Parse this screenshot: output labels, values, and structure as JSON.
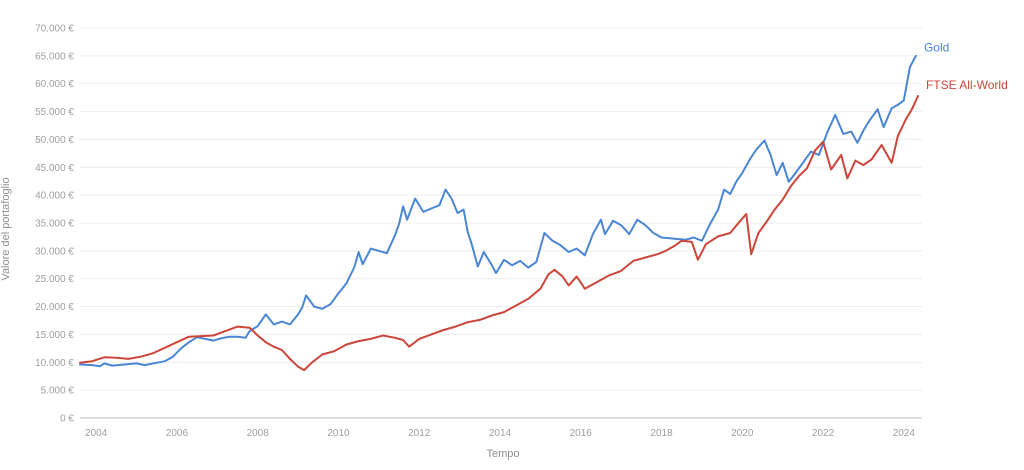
{
  "chart_data": {
    "type": "line",
    "xlabel": "Tempo",
    "ylabel": "Valore del portafoglio",
    "xlim": [
      2003.6,
      2024.45
    ],
    "ylim": [
      0,
      70000
    ],
    "x_ticks": [
      2004,
      2006,
      2008,
      2010,
      2012,
      2014,
      2016,
      2018,
      2020,
      2022,
      2024
    ],
    "x_tick_labels": [
      "2004",
      "2006",
      "2008",
      "2010",
      "2012",
      "2014",
      "2016",
      "2018",
      "2020",
      "2022",
      "2024"
    ],
    "y_ticks": [
      0,
      5000,
      10000,
      15000,
      20000,
      25000,
      30000,
      35000,
      40000,
      45000,
      50000,
      55000,
      60000,
      65000,
      70000
    ],
    "y_tick_labels": [
      "0 €",
      "5.000 €",
      "10.000 €",
      "15.000 €",
      "20.000 €",
      "25.000 €",
      "30.000 €",
      "35.000 €",
      "40.000 €",
      "45.000 €",
      "50.000 €",
      "55.000 €",
      "60.000 €",
      "65.000 €",
      "70.000 €"
    ],
    "grid": true,
    "legend": "end-of-line labels",
    "series": [
      {
        "name": "Gold",
        "color": "#4a86d4",
        "points": [
          [
            2003.6,
            9600
          ],
          [
            2003.9,
            9500
          ],
          [
            2004.1,
            9300
          ],
          [
            2004.2,
            9800
          ],
          [
            2004.4,
            9400
          ],
          [
            2004.7,
            9600
          ],
          [
            2005.0,
            9800
          ],
          [
            2005.2,
            9500
          ],
          [
            2005.5,
            9900
          ],
          [
            2005.7,
            10200
          ],
          [
            2005.9,
            11000
          ],
          [
            2006.1,
            12500
          ],
          [
            2006.3,
            13600
          ],
          [
            2006.5,
            14500
          ],
          [
            2006.7,
            14200
          ],
          [
            2006.9,
            13900
          ],
          [
            2007.1,
            14300
          ],
          [
            2007.3,
            14600
          ],
          [
            2007.5,
            14600
          ],
          [
            2007.7,
            14400
          ],
          [
            2007.8,
            15600
          ],
          [
            2008.0,
            16500
          ],
          [
            2008.2,
            18600
          ],
          [
            2008.4,
            16800
          ],
          [
            2008.6,
            17300
          ],
          [
            2008.8,
            16800
          ],
          [
            2009.0,
            18600
          ],
          [
            2009.1,
            19800
          ],
          [
            2009.2,
            22000
          ],
          [
            2009.4,
            20000
          ],
          [
            2009.6,
            19600
          ],
          [
            2009.8,
            20400
          ],
          [
            2010.0,
            22400
          ],
          [
            2010.2,
            24200
          ],
          [
            2010.4,
            27200
          ],
          [
            2010.5,
            29800
          ],
          [
            2010.6,
            27600
          ],
          [
            2010.8,
            30400
          ],
          [
            2011.0,
            30000
          ],
          [
            2011.2,
            29600
          ],
          [
            2011.4,
            32800
          ],
          [
            2011.5,
            34800
          ],
          [
            2011.6,
            38000
          ],
          [
            2011.7,
            35600
          ],
          [
            2011.9,
            39400
          ],
          [
            2012.1,
            37000
          ],
          [
            2012.3,
            37600
          ],
          [
            2012.5,
            38200
          ],
          [
            2012.65,
            41000
          ],
          [
            2012.8,
            39400
          ],
          [
            2012.95,
            36800
          ],
          [
            2013.1,
            37400
          ],
          [
            2013.2,
            33400
          ],
          [
            2013.3,
            31200
          ],
          [
            2013.45,
            27200
          ],
          [
            2013.6,
            29800
          ],
          [
            2013.8,
            27400
          ],
          [
            2013.9,
            26000
          ],
          [
            2014.1,
            28400
          ],
          [
            2014.3,
            27400
          ],
          [
            2014.5,
            28200
          ],
          [
            2014.7,
            27000
          ],
          [
            2014.9,
            28000
          ],
          [
            2015.0,
            30600
          ],
          [
            2015.1,
            33200
          ],
          [
            2015.3,
            31800
          ],
          [
            2015.5,
            31000
          ],
          [
            2015.7,
            29800
          ],
          [
            2015.9,
            30400
          ],
          [
            2016.1,
            29200
          ],
          [
            2016.3,
            33000
          ],
          [
            2016.5,
            35600
          ],
          [
            2016.6,
            33000
          ],
          [
            2016.8,
            35400
          ],
          [
            2017.0,
            34600
          ],
          [
            2017.2,
            33000
          ],
          [
            2017.4,
            35600
          ],
          [
            2017.6,
            34600
          ],
          [
            2017.8,
            33200
          ],
          [
            2018.0,
            32400
          ],
          [
            2018.3,
            32200
          ],
          [
            2018.6,
            32000
          ],
          [
            2018.8,
            32400
          ],
          [
            2019.0,
            31800
          ],
          [
            2019.2,
            34800
          ],
          [
            2019.4,
            37400
          ],
          [
            2019.55,
            41000
          ],
          [
            2019.7,
            40200
          ],
          [
            2019.85,
            42400
          ],
          [
            2020.0,
            44000
          ],
          [
            2020.2,
            46600
          ],
          [
            2020.35,
            48200
          ],
          [
            2020.55,
            49800
          ],
          [
            2020.7,
            47200
          ],
          [
            2020.85,
            43600
          ],
          [
            2021.0,
            45800
          ],
          [
            2021.15,
            42400
          ],
          [
            2021.3,
            43800
          ],
          [
            2021.5,
            45800
          ],
          [
            2021.7,
            47800
          ],
          [
            2021.9,
            47200
          ],
          [
            2022.1,
            51200
          ],
          [
            2022.3,
            54400
          ],
          [
            2022.5,
            51000
          ],
          [
            2022.7,
            51400
          ],
          [
            2022.85,
            49400
          ],
          [
            2023.0,
            51600
          ],
          [
            2023.15,
            53400
          ],
          [
            2023.35,
            55400
          ],
          [
            2023.5,
            52200
          ],
          [
            2023.7,
            55600
          ],
          [
            2023.85,
            56200
          ],
          [
            2024.0,
            57000
          ],
          [
            2024.15,
            63000
          ],
          [
            2024.3,
            65000
          ]
        ]
      },
      {
        "name": "FTSE All-World",
        "color": "#cc463b",
        "points": [
          [
            2003.6,
            9900
          ],
          [
            2003.9,
            10200
          ],
          [
            2004.2,
            10900
          ],
          [
            2004.5,
            10800
          ],
          [
            2004.8,
            10600
          ],
          [
            2005.1,
            11000
          ],
          [
            2005.4,
            11600
          ],
          [
            2005.7,
            12600
          ],
          [
            2006.0,
            13600
          ],
          [
            2006.3,
            14600
          ],
          [
            2006.6,
            14700
          ],
          [
            2006.9,
            14800
          ],
          [
            2007.2,
            15600
          ],
          [
            2007.5,
            16400
          ],
          [
            2007.8,
            16200
          ],
          [
            2008.0,
            14800
          ],
          [
            2008.2,
            13600
          ],
          [
            2008.4,
            12800
          ],
          [
            2008.6,
            12200
          ],
          [
            2008.8,
            10600
          ],
          [
            2009.0,
            9200
          ],
          [
            2009.15,
            8600
          ],
          [
            2009.35,
            10000
          ],
          [
            2009.6,
            11400
          ],
          [
            2009.9,
            12000
          ],
          [
            2010.2,
            13200
          ],
          [
            2010.5,
            13800
          ],
          [
            2010.8,
            14200
          ],
          [
            2011.1,
            14800
          ],
          [
            2011.4,
            14400
          ],
          [
            2011.6,
            14000
          ],
          [
            2011.75,
            12800
          ],
          [
            2012.0,
            14200
          ],
          [
            2012.3,
            15000
          ],
          [
            2012.6,
            15800
          ],
          [
            2012.9,
            16400
          ],
          [
            2013.2,
            17200
          ],
          [
            2013.5,
            17600
          ],
          [
            2013.8,
            18400
          ],
          [
            2014.1,
            19000
          ],
          [
            2014.4,
            20200
          ],
          [
            2014.7,
            21400
          ],
          [
            2015.0,
            23200
          ],
          [
            2015.2,
            25800
          ],
          [
            2015.35,
            26600
          ],
          [
            2015.55,
            25400
          ],
          [
            2015.7,
            23800
          ],
          [
            2015.9,
            25400
          ],
          [
            2016.1,
            23200
          ],
          [
            2016.4,
            24400
          ],
          [
            2016.7,
            25600
          ],
          [
            2017.0,
            26400
          ],
          [
            2017.3,
            28200
          ],
          [
            2017.6,
            28800
          ],
          [
            2017.9,
            29400
          ],
          [
            2018.1,
            30000
          ],
          [
            2018.3,
            30800
          ],
          [
            2018.5,
            31800
          ],
          [
            2018.75,
            31600
          ],
          [
            2018.9,
            28400
          ],
          [
            2019.1,
            31200
          ],
          [
            2019.4,
            32600
          ],
          [
            2019.7,
            33200
          ],
          [
            2019.95,
            35400
          ],
          [
            2020.1,
            36600
          ],
          [
            2020.22,
            29400
          ],
          [
            2020.4,
            33200
          ],
          [
            2020.6,
            35200
          ],
          [
            2020.8,
            37400
          ],
          [
            2021.0,
            39200
          ],
          [
            2021.2,
            41600
          ],
          [
            2021.4,
            43400
          ],
          [
            2021.6,
            44800
          ],
          [
            2021.8,
            48000
          ],
          [
            2022.0,
            49600
          ],
          [
            2022.2,
            44600
          ],
          [
            2022.45,
            47200
          ],
          [
            2022.6,
            43000
          ],
          [
            2022.8,
            46200
          ],
          [
            2023.0,
            45400
          ],
          [
            2023.2,
            46400
          ],
          [
            2023.45,
            49000
          ],
          [
            2023.7,
            45800
          ],
          [
            2023.85,
            50600
          ],
          [
            2024.05,
            53600
          ],
          [
            2024.2,
            55400
          ],
          [
            2024.35,
            57800
          ]
        ]
      }
    ]
  }
}
